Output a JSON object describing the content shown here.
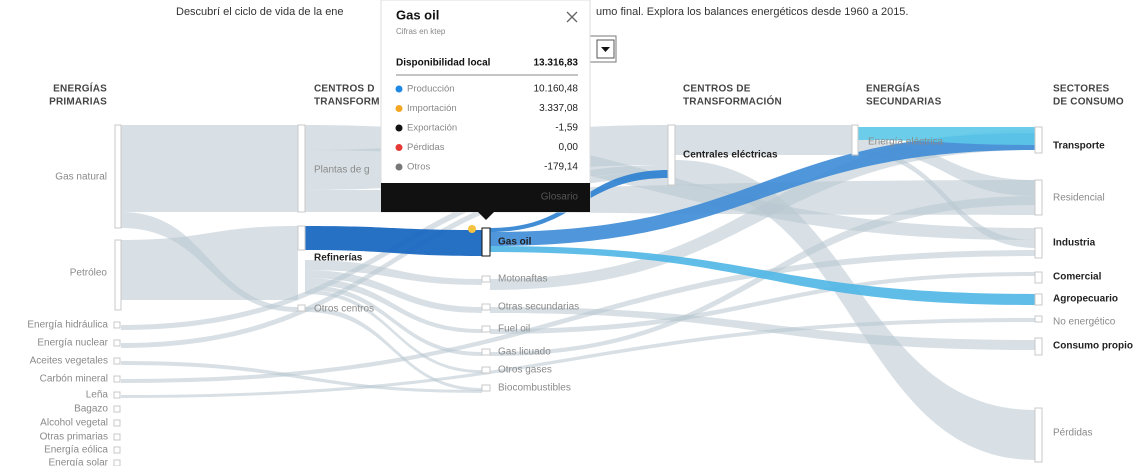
{
  "header": {
    "intro_left": "Descubrí el ciclo de vida de la ene",
    "intro_right": "umo final. Explora los balances energéticos desde 1960 a 2015."
  },
  "columns": [
    [
      "ENERGÍAS",
      "PRIMARIAS"
    ],
    [
      "CENTROS D",
      "TRANSFORM"
    ],
    [
      "CENTROS DE",
      "TRANSFORMACIÓN"
    ],
    [
      "ENERGÍAS",
      "SECUNDARIAS"
    ],
    [
      "SECTORES",
      "DE CONSUMO"
    ]
  ],
  "nodes": {
    "primarias": [
      "Gas natural",
      "Petróleo",
      "Energía hidráulica",
      "Energía nuclear",
      "Aceites vegetales",
      "Carbón mineral",
      "Leña",
      "Bagazo",
      "Alcohol vegetal",
      "Otras primarias",
      "Energía eólica",
      "Energía solar"
    ],
    "centros1": [
      "Plantas de g",
      "Refinerías",
      "Otros centros"
    ],
    "secundarias": [
      "Gas oil",
      "Motonaftas",
      "Otras secundarias",
      "Fuel oil",
      "Gas licuado",
      "Otros gases",
      "Biocombustibles"
    ],
    "centros2": [
      "Centrales eléctricas"
    ],
    "energias_secundarias": [
      "Energía eléctrica"
    ],
    "sectores": [
      "Transporte",
      "Residencial",
      "Industria",
      "Comercial",
      "Agropecuario",
      "No energético",
      "Consumo propio",
      "Pérdidas"
    ]
  },
  "tooltip": {
    "title": "Gas oil",
    "subtitle": "Cifras en ktep",
    "total_label": "Disponibilidad local",
    "total_value": "13.316,83",
    "rows": [
      {
        "label": "Producción",
        "value": "10.160,48",
        "color": "#1e88e5"
      },
      {
        "label": "Importación",
        "value": "3.337,08",
        "color": "#f5a623"
      },
      {
        "label": "Exportación",
        "value": "-1,59",
        "color": "#111111"
      },
      {
        "label": "Pérdidas",
        "value": "0,00",
        "color": "#e53935"
      },
      {
        "label": "Otros",
        "value": "-179,14",
        "color": "#777777"
      }
    ],
    "footer": "Glosario"
  }
}
